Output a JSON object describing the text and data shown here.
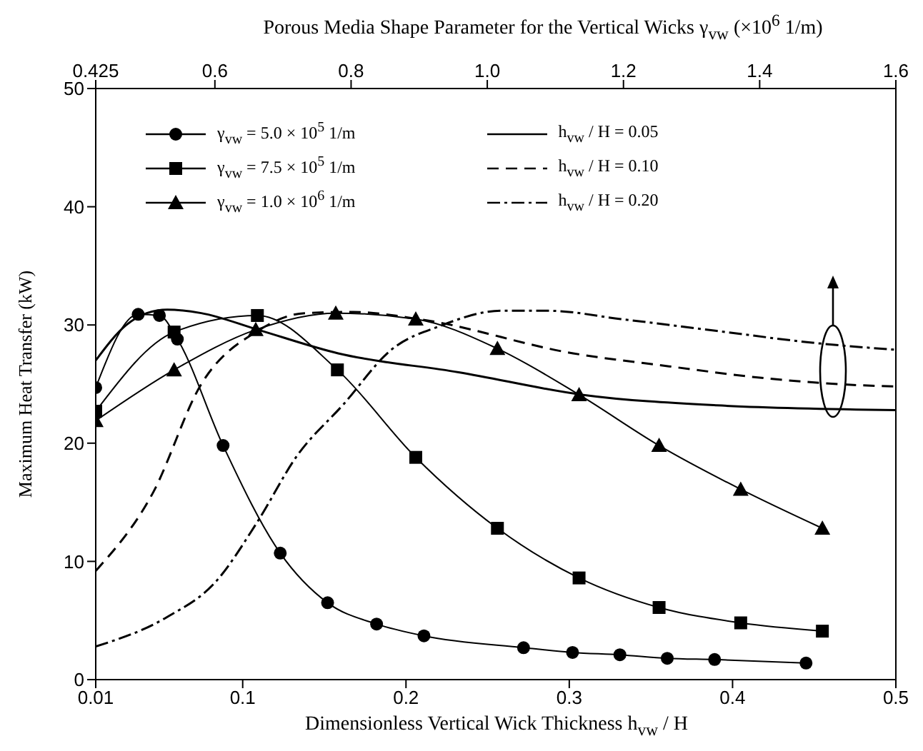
{
  "chart_data": {
    "type": "line",
    "xlabel": "Dimensionless Vertical Wick Thickness h$_{vw}$ / H",
    "x2label": "Porous Media Shape Parameter for the Vertical Wicks γ$_{vw}$ (×10$^{6}$ 1/m)",
    "ylabel": "Maximum Heat Transfer (kW)",
    "xlim": [
      0.01,
      0.5
    ],
    "xticks": [
      0.01,
      0.1,
      0.2,
      0.3,
      0.4,
      0.5
    ],
    "x2lim": [
      0.425,
      1.6
    ],
    "x2ticks": [
      0.425,
      0.6,
      0.8,
      {
        "value": 1,
        "label": "1.0"
      },
      1.2,
      1.4,
      1.6
    ],
    "ylim": [
      0,
      50
    ],
    "yticks": [
      0,
      10,
      20,
      30,
      40,
      50
    ],
    "legend": "top",
    "series": [
      {
        "name": "γ$_{vw}$ = 5.0 × 10$^{5}$ 1/m",
        "color": "#000000",
        "marker": "circle",
        "line_style": "solid",
        "x": [
          0.01,
          0.036,
          0.049,
          0.06,
          0.088,
          0.123,
          0.152,
          0.182,
          0.211,
          0.272,
          0.302,
          0.331,
          0.36,
          0.389,
          0.445
        ],
        "values": [
          24.7,
          30.9,
          30.8,
          28.8,
          19.8,
          10.7,
          6.5,
          4.7,
          3.7,
          2.7,
          2.3,
          2.1,
          1.8,
          1.7,
          1.4
        ]
      },
      {
        "name": "γ$_{vw}$ = 7.5 × 10$^{5}$ 1/m",
        "color": "#000000",
        "marker": "square",
        "line_style": "solid",
        "x": [
          0.01,
          0.058,
          0.109,
          0.158,
          0.206,
          0.256,
          0.306,
          0.355,
          0.405,
          0.455
        ],
        "values": [
          22.7,
          29.4,
          30.8,
          26.2,
          18.8,
          12.8,
          8.6,
          6.1,
          4.8,
          4.1
        ]
      },
      {
        "name": "γ$_{vw}$ = 1.0 × 10$^{6}$ 1/m",
        "color": "#000000",
        "marker": "triangle",
        "line_style": "solid",
        "x": [
          0.01,
          0.058,
          0.108,
          0.157,
          0.206,
          0.256,
          0.306,
          0.355,
          0.405,
          0.455
        ],
        "values": [
          21.9,
          26.2,
          29.6,
          31.0,
          30.5,
          28.0,
          24.1,
          19.8,
          16.1,
          12.8
        ]
      },
      {
        "name": "h$_{vw}$ / H = 0.05",
        "color": "#000000",
        "marker": "none",
        "line_style": "solid",
        "axis": "x2",
        "x": [
          0.425,
          0.47,
          0.5,
          0.53,
          0.58,
          0.663,
          0.781,
          0.958,
          1.139,
          1.337,
          1.6
        ],
        "values": [
          27.0,
          30.0,
          31.0,
          31.3,
          31.0,
          29.6,
          27.6,
          26.0,
          24.1,
          23.2,
          22.8
        ]
      },
      {
        "name": "h$_{vw}$ / H = 0.10",
        "color": "#000000",
        "marker": "none",
        "line_style": "dashed",
        "axis": "x2",
        "x": [
          0.425,
          0.509,
          0.579,
          0.663,
          0.732,
          0.803,
          0.899,
          1.126,
          1.267,
          1.407,
          1.547,
          1.6
        ],
        "values": [
          9.2,
          15.8,
          24.9,
          29.5,
          31.0,
          31.1,
          30.5,
          27.6,
          26.5,
          25.5,
          24.9,
          24.8
        ]
      },
      {
        "name": "h$_{vw}$ / H = 0.20",
        "color": "#000000",
        "marker": "none",
        "line_style": "dashdot",
        "axis": "x2",
        "x": [
          0.425,
          0.53,
          0.6,
          0.663,
          0.719,
          0.789,
          0.859,
          0.93,
          1.021,
          1.09,
          1.196,
          1.337,
          1.477,
          1.6
        ],
        "values": [
          2.8,
          5.3,
          8.2,
          13.4,
          18.8,
          23.3,
          27.9,
          29.9,
          31.2,
          31.2,
          30.5,
          29.5,
          28.5,
          27.9
        ]
      }
    ]
  }
}
